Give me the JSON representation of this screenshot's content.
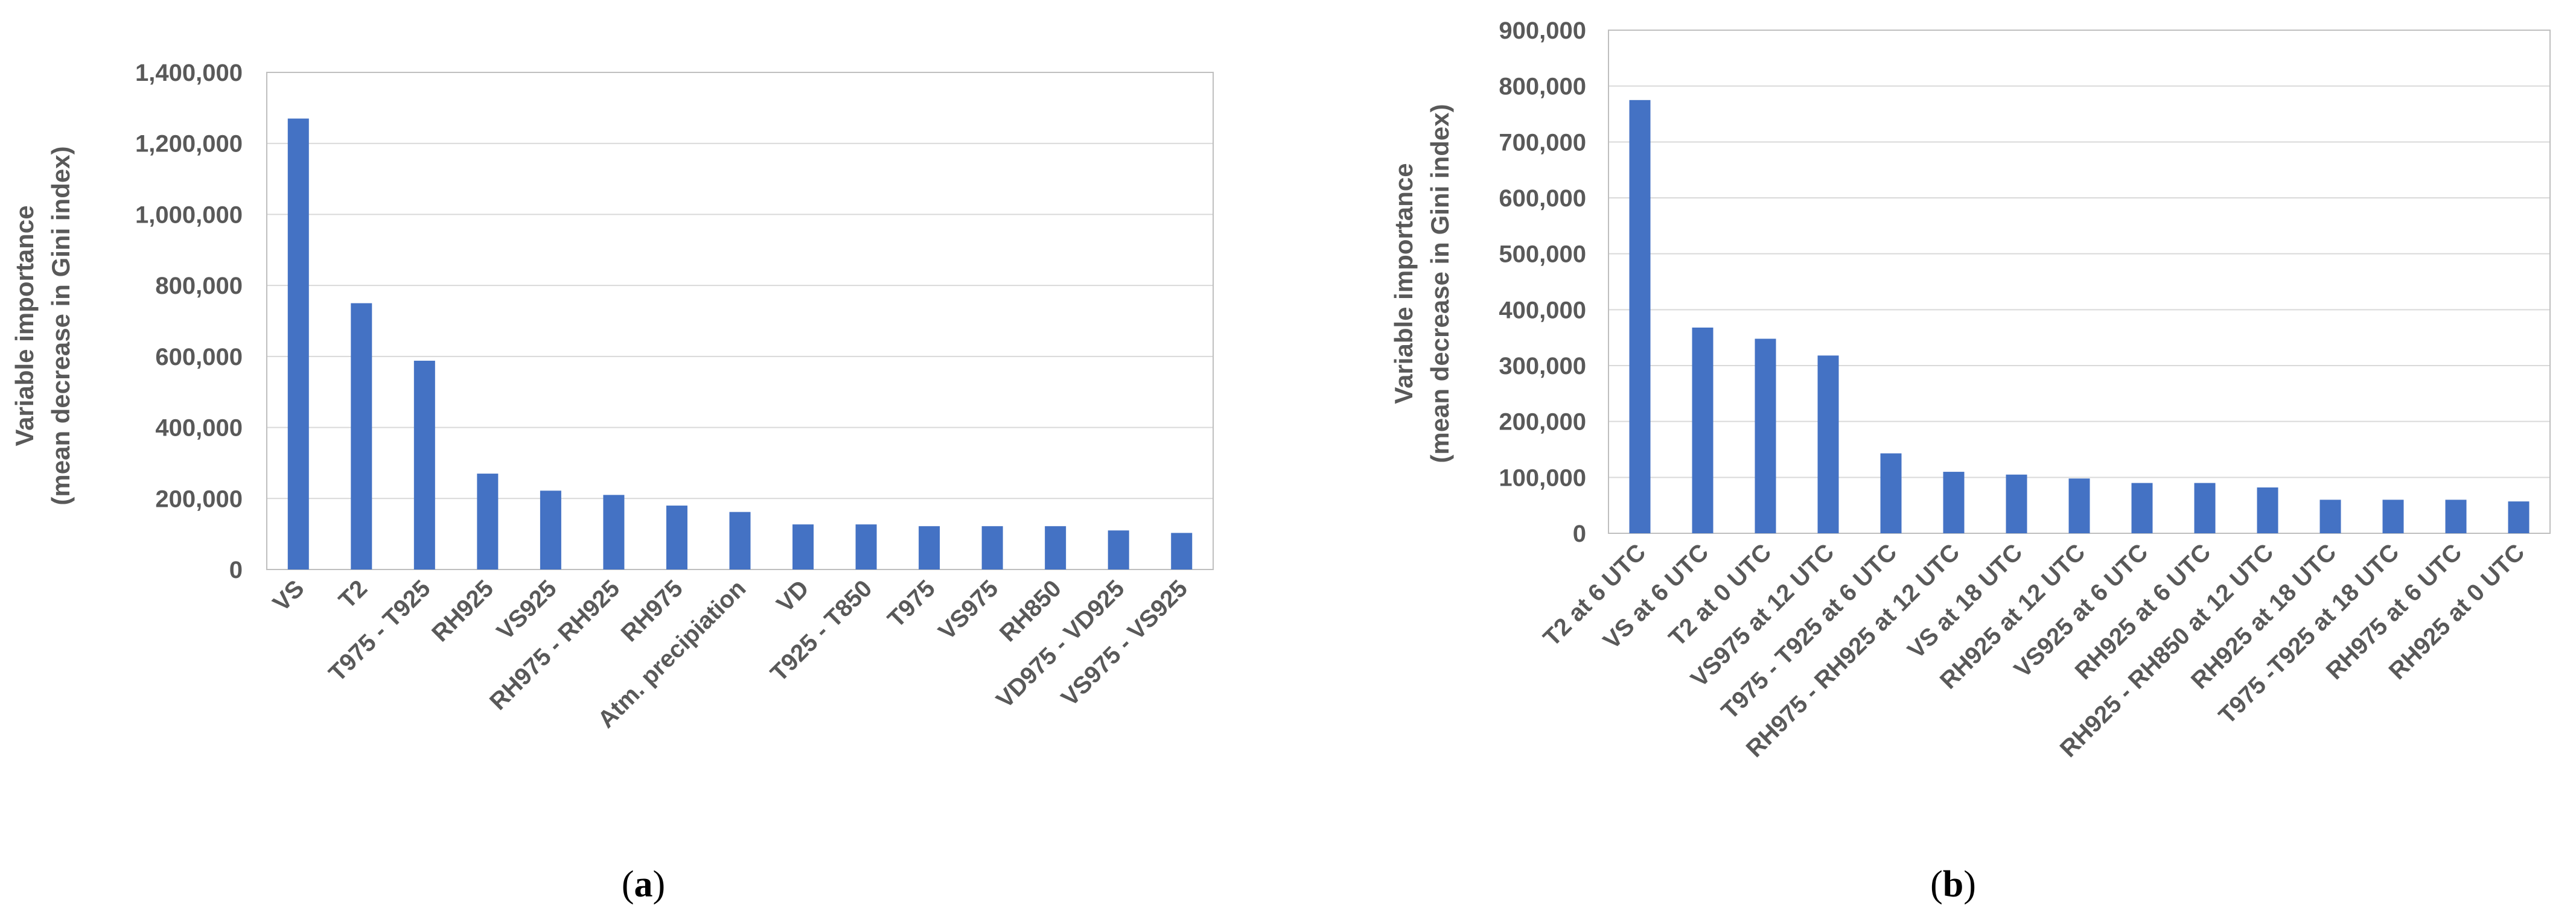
{
  "colors": {
    "bar": "#4472C4",
    "grid": "#D9D9D9",
    "axis": "#BFBFBF",
    "text": "#595959"
  },
  "chart_data": [
    {
      "type": "bar",
      "panel": "a",
      "ylabel": [
        "Variable importance",
        "(mean decrease in Gini index)"
      ],
      "ylim": [
        0,
        1400000
      ],
      "yticks": [
        0,
        200000,
        400000,
        600000,
        800000,
        1000000,
        1200000,
        1400000
      ],
      "ytick_labels": [
        "0",
        "200,000",
        "400,000",
        "600,000",
        "800,000",
        "1,000,000",
        "1,200,000",
        "1,400,000"
      ],
      "grid": true,
      "categories": [
        "VS",
        "T2",
        "T975 - T925",
        "RH925",
        "VS925",
        "RH975 - RH925",
        "RH975",
        "Atm. precipiation",
        "VD",
        "T925 - T850",
        "T975",
        "VS975",
        "RH850",
        "VD975 - VD925",
        "VS975 - VS925"
      ],
      "values": [
        1270000,
        750000,
        588000,
        270000,
        222000,
        210000,
        180000,
        162000,
        127000,
        127000,
        122000,
        122000,
        122000,
        110000,
        103000
      ]
    },
    {
      "type": "bar",
      "panel": "b",
      "ylabel": [
        "Variable importance",
        "(mean decrease in Gini index)"
      ],
      "ylim": [
        0,
        900000
      ],
      "yticks": [
        0,
        100000,
        200000,
        300000,
        400000,
        500000,
        600000,
        700000,
        800000,
        900000
      ],
      "ytick_labels": [
        "0",
        "100,000",
        "200,000",
        "300,000",
        "400,000",
        "500,000",
        "600,000",
        "700,000",
        "800,000",
        "900,000"
      ],
      "grid": true,
      "categories": [
        "T2 at 6 UTC",
        "VS at 6 UTC",
        "T2 at 0 UTC",
        "VS975 at 12 UTC",
        "T975 - T925 at 6 UTC",
        "RH975 - RH925 at 12 UTC",
        "VS at 18 UTC",
        "RH925 at 12 UTC",
        "VS925 at 6 UTC",
        "RH925 at 6 UTC",
        "RH925 - RH850 at 12 UTC",
        "RH925 at 18 UTC",
        "T975 -T925 at 18 UTC",
        "RH975 at 6 UTC",
        "RH925 at 0 UTC"
      ],
      "values": [
        775000,
        368000,
        348000,
        318000,
        143000,
        110000,
        105000,
        98000,
        90000,
        90000,
        82000,
        60000,
        60000,
        60000,
        57000
      ]
    }
  ],
  "panel_labels": [
    "a",
    "b"
  ]
}
